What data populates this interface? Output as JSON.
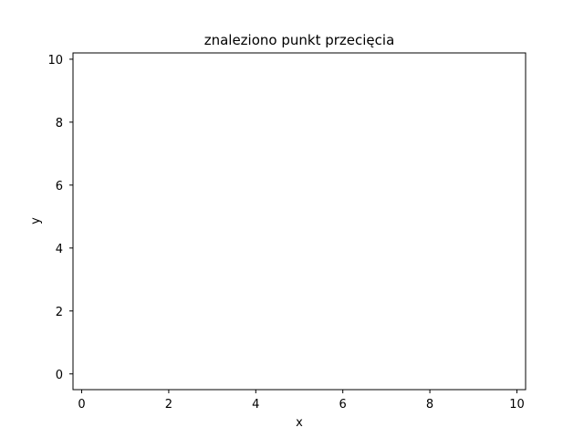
{
  "chart_data": {
    "type": "scatter",
    "title": "znaleziono punkt przecięcia",
    "xlabel": "x",
    "ylabel": "y",
    "xlim": [
      -0.2,
      10.2
    ],
    "ylim": [
      -0.5,
      10.2
    ],
    "xticks": [
      0,
      2,
      4,
      6,
      8,
      10
    ],
    "yticks": [
      0,
      2,
      4,
      6,
      8,
      10
    ],
    "grid": false,
    "series": []
  }
}
